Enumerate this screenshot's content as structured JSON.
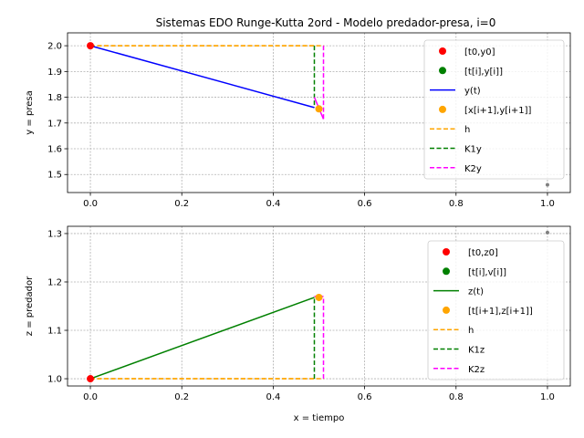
{
  "chart_data": {
    "title": "Sistemas EDO Runge-Kutta 2ord - Modelo predador-presa, i=0",
    "xlabel": "x = tiempo",
    "x_ticks": [
      0.0,
      0.2,
      0.4,
      0.6,
      0.8,
      1.0
    ],
    "colors": {
      "point0": "#ff0000",
      "pointi": "#008000",
      "yline": "#0000ff",
      "zline": "#008000",
      "next": "#ffa500",
      "h": "#ffa500",
      "k1": "#008000",
      "k2": "#ff00ff",
      "ghost": "#808080",
      "grid": "#b0b0b0"
    },
    "panels": [
      {
        "type": "line",
        "ylabel": "y = presa",
        "xlim": [
          -0.05,
          1.05
        ],
        "ylim": [
          1.43,
          2.05
        ],
        "y_ticks": [
          1.5,
          1.6,
          1.7,
          1.8,
          1.9,
          2.0
        ],
        "start": [
          0.0,
          2.0
        ],
        "current": [
          0.0,
          2.0
        ],
        "next": [
          0.5,
          1.755
        ],
        "ghost": [
          1.0,
          1.46
        ],
        "line": {
          "x": [
            0.0,
            0.49
          ],
          "y": [
            2.0,
            1.76
          ]
        },
        "h_segments": [
          {
            "x": [
              0.0,
              0.49
            ],
            "y": [
              2.0,
              2.0
            ]
          },
          {
            "x": [
              0.0,
              0.51
            ],
            "y": [
              2.0,
              2.0
            ]
          }
        ],
        "k1": {
          "x": [
            0.49,
            0.49
          ],
          "y": [
            2.0,
            1.76
          ]
        },
        "k2": {
          "x": [
            0.51,
            0.51
          ],
          "y": [
            2.0,
            1.71
          ]
        },
        "k2_slope": {
          "x": [
            0.49,
            0.51
          ],
          "y": [
            1.8,
            1.715
          ]
        },
        "legend": [
          "[t0,y0]",
          "[t[i],y[i]]",
          "y(t)",
          "[x[i+1],y[i+1]]",
          "h",
          "K1y",
          "K2y"
        ]
      },
      {
        "type": "line",
        "ylabel": "z = predador",
        "xlim": [
          -0.05,
          1.05
        ],
        "ylim": [
          0.985,
          1.315
        ],
        "y_ticks": [
          1.0,
          1.1,
          1.2,
          1.3
        ],
        "start": [
          0.0,
          1.0
        ],
        "current": [
          0.0,
          1.0
        ],
        "next": [
          0.5,
          1.168
        ],
        "ghost": [
          1.0,
          1.302
        ],
        "line": {
          "x": [
            0.0,
            0.49
          ],
          "y": [
            1.0,
            1.168
          ]
        },
        "h_segments": [
          {
            "x": [
              0.0,
              0.49
            ],
            "y": [
              1.0,
              1.0
            ]
          },
          {
            "x": [
              0.0,
              0.51
            ],
            "y": [
              1.0,
              1.0
            ]
          }
        ],
        "k1": {
          "x": [
            0.49,
            0.49
          ],
          "y": [
            1.0,
            1.168
          ]
        },
        "k2": {
          "x": [
            0.51,
            0.51
          ],
          "y": [
            1.0,
            1.168
          ]
        },
        "k2_slope": {
          "x": [
            0.49,
            0.51
          ],
          "y": [
            1.17,
            1.17
          ]
        },
        "legend": [
          "[t0,z0]",
          "[t[i],v[i]]",
          "z(t)",
          "[t[i+1],z[i+1]]",
          "h",
          "K1z",
          "K2z"
        ]
      }
    ]
  }
}
